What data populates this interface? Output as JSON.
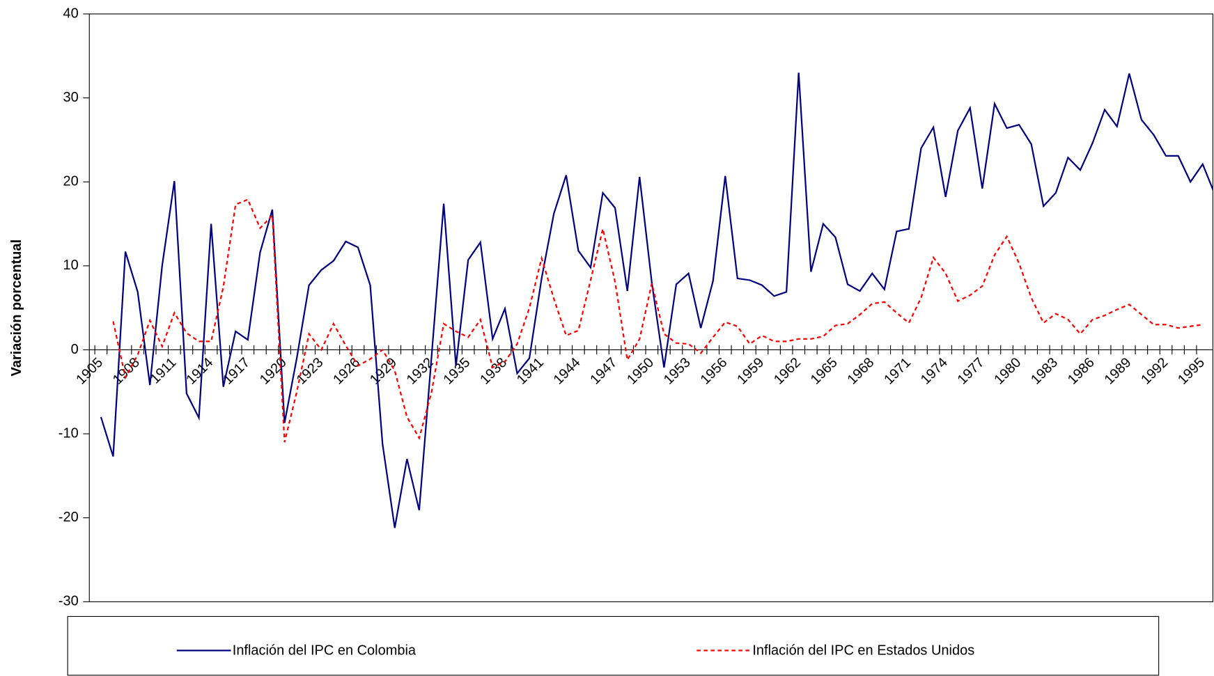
{
  "chart_data": {
    "type": "line",
    "y_label": "Variación porcentual",
    "categories": [
      "1905",
      null,
      null,
      "1908",
      null,
      null,
      "1911",
      null,
      null,
      "1914",
      null,
      null,
      "1917",
      null,
      null,
      "1920",
      null,
      null,
      "1923",
      null,
      null,
      "1926",
      null,
      null,
      "1929",
      null,
      null,
      "1932",
      null,
      null,
      "1935",
      null,
      null,
      "1938",
      null,
      null,
      "1941",
      null,
      null,
      "1944",
      null,
      null,
      "1947",
      null,
      null,
      "1950",
      null,
      null,
      "1953",
      null,
      null,
      "1956",
      null,
      null,
      "1959",
      null,
      null,
      "1962",
      null,
      null,
      "1965",
      null,
      null,
      "1968",
      null,
      null,
      "1971",
      null,
      null,
      "1974",
      null,
      null,
      "1977",
      null,
      null,
      "1980",
      null,
      null,
      "1983",
      null,
      null,
      "1986",
      null,
      null,
      "1989",
      null,
      null,
      "1992",
      null,
      null,
      "1995",
      null
    ],
    "series": [
      {
        "name": "Inflación del IPC en Colombia",
        "color": "#000080",
        "dashed": false,
        "values": [
          -8,
          -12.7,
          11.7,
          6.9,
          -4.2,
          10,
          20.1,
          -5.2,
          -8.1,
          15,
          -4.4,
          2.2,
          1.2,
          11.6,
          16.7,
          -8.7,
          -1,
          7.7,
          9.5,
          10.6,
          12.9,
          12.2,
          7.7,
          -11.2,
          -21.2,
          -13,
          -19.1,
          -1,
          17.4,
          -1.9,
          10.7,
          12.8,
          1.3,
          4.9,
          -2.8,
          -1,
          8.5,
          16.2,
          20.8,
          11.8,
          9.8,
          18.7,
          16.9,
          7,
          20.6,
          8,
          -2.1,
          7.8,
          9.1,
          2.6,
          8.2,
          20.7,
          8.5,
          8.3,
          7.7,
          6.4,
          6.9,
          33,
          9.3,
          15,
          13.4,
          7.8,
          7,
          9.1,
          7.2,
          14.1,
          14.4,
          24,
          26.5,
          18.2,
          26.1,
          28.8,
          19.2,
          29.3,
          26.4,
          26.8,
          24.5,
          17.1,
          18.7,
          22.9,
          21.4,
          24.6,
          28.6,
          26.6,
          32.9,
          27.4,
          25.6,
          23.1,
          23.1,
          20,
          22.1,
          18.5
        ]
      },
      {
        "name": "Inflación del IPC en Estados Unidos",
        "color": "#ff0000",
        "dashed": true,
        "values": [
          null,
          3.4,
          -3.3,
          -0.6,
          3.5,
          0.4,
          4.4,
          2,
          1,
          1,
          7.5,
          17.3,
          17.9,
          14.5,
          16,
          -11,
          -5,
          1.9,
          0,
          3.1,
          0.5,
          -1.9,
          -1.1,
          0,
          -2.5,
          -8,
          -10.5,
          -5.1,
          3.1,
          2.2,
          1.5,
          3.6,
          -2.1,
          -1.4,
          0.7,
          5,
          10.9,
          6.1,
          1.7,
          2.3,
          8.3,
          14.4,
          8.1,
          -1.2,
          1.3,
          7.9,
          1.9,
          0.8,
          0.7,
          -0.4,
          1.5,
          3.3,
          2.8,
          0.7,
          1.7,
          1,
          1,
          1.3,
          1.3,
          1.6,
          2.9,
          3.1,
          4.2,
          5.5,
          5.7,
          4.4,
          3.2,
          6.2,
          11,
          9.1,
          5.8,
          6.5,
          7.6,
          11.3,
          13.5,
          10.3,
          6.2,
          3.2,
          4.3,
          3.6,
          1.9,
          3.6,
          4.1,
          4.8,
          5.4,
          4.2,
          3,
          3,
          2.6,
          2.8,
          3,
          null
        ]
      }
    ],
    "ylim": [
      -30,
      40
    ],
    "yticks": [
      -30,
      -20,
      -10,
      0,
      10,
      20,
      30,
      40
    ],
    "grid": false,
    "legend": "bottom"
  }
}
